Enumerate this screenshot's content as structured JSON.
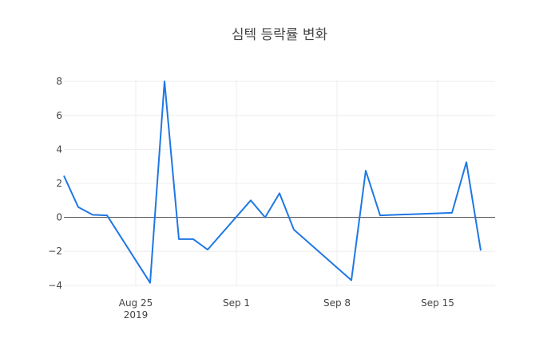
{
  "chart_data": {
    "type": "line",
    "title": "심텍 등락률 변화",
    "xlabel": "",
    "ylabel": "",
    "x_ticks": [
      {
        "date": "2019-08-25",
        "label": "Aug 25",
        "sublabel": "2019"
      },
      {
        "date": "2019-09-01",
        "label": "Sep 1",
        "sublabel": ""
      },
      {
        "date": "2019-09-08",
        "label": "Sep 8",
        "sublabel": ""
      },
      {
        "date": "2019-09-15",
        "label": "Sep 15",
        "sublabel": ""
      }
    ],
    "y_ticks": [
      -4,
      -2,
      0,
      2,
      4,
      6,
      8
    ],
    "xlim": [
      "2019-08-20",
      "2019-09-19"
    ],
    "ylim": [
      -4.1,
      8.1
    ],
    "grid": true,
    "series": [
      {
        "color": "#1f77e4",
        "x": [
          "2019-08-20",
          "2019-08-21",
          "2019-08-22",
          "2019-08-23",
          "2019-08-26",
          "2019-08-27",
          "2019-08-28",
          "2019-08-29",
          "2019-08-30",
          "2019-09-02",
          "2019-09-03",
          "2019-09-04",
          "2019-09-05",
          "2019-09-09",
          "2019-09-10",
          "2019-09-11",
          "2019-09-16",
          "2019-09-17",
          "2019-09-18"
        ],
        "y": [
          2.45,
          0.6,
          0.15,
          0.12,
          -3.85,
          8.0,
          -1.28,
          -1.28,
          -1.9,
          1.0,
          0.0,
          1.42,
          -0.72,
          -3.7,
          2.75,
          0.12,
          0.27,
          3.25,
          -1.95
        ]
      }
    ]
  }
}
